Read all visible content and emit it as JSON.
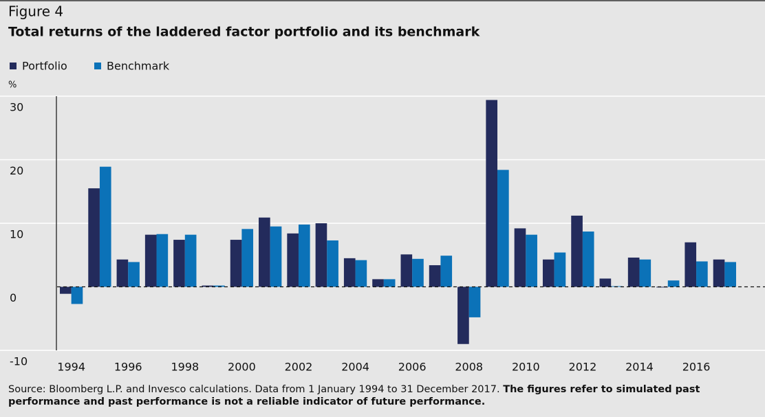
{
  "chart_data": {
    "type": "bar",
    "figure_label": "Figure 4",
    "title": "Total returns of the laddered factor portfolio and its benchmark",
    "y_label": "%",
    "categories": [
      "1994",
      null,
      "1996",
      null,
      "1998",
      null,
      "2000",
      null,
      "2002",
      null,
      "2004",
      null,
      "2006",
      null,
      "2008",
      null,
      "2010",
      null,
      "2012",
      null,
      "2014",
      null,
      "2016",
      null
    ],
    "series": [
      {
        "name": "Portfolio",
        "color": "#232b5c",
        "values": [
          -1.1,
          15.5,
          4.3,
          8.2,
          7.4,
          0.2,
          7.4,
          10.9,
          8.4,
          10.0,
          4.5,
          1.2,
          5.1,
          3.4,
          -9.0,
          29.4,
          9.2,
          4.3,
          11.2,
          1.3,
          4.6,
          -0.1,
          7.0,
          4.3
        ]
      },
      {
        "name": "Benchmark",
        "color": "#0b72b8",
        "values": [
          -2.7,
          18.9,
          3.9,
          8.3,
          8.2,
          0.2,
          9.1,
          9.5,
          9.8,
          7.3,
          4.2,
          1.2,
          4.4,
          4.9,
          -4.8,
          18.4,
          8.2,
          5.4,
          8.7,
          0.1,
          4.3,
          1.0,
          4.0,
          3.9
        ]
      }
    ],
    "ylim": [
      -10,
      30
    ],
    "yticks": [
      -10,
      0,
      10,
      20,
      30
    ],
    "grid": true,
    "note": "Source: Bloomberg L.P. and Invesco calculations. Data from 1 January 1994 to 31 December 2017.",
    "note_bold": "The figures refer to simulated past performance and past performance is not a reliable indicator of future performance."
  }
}
